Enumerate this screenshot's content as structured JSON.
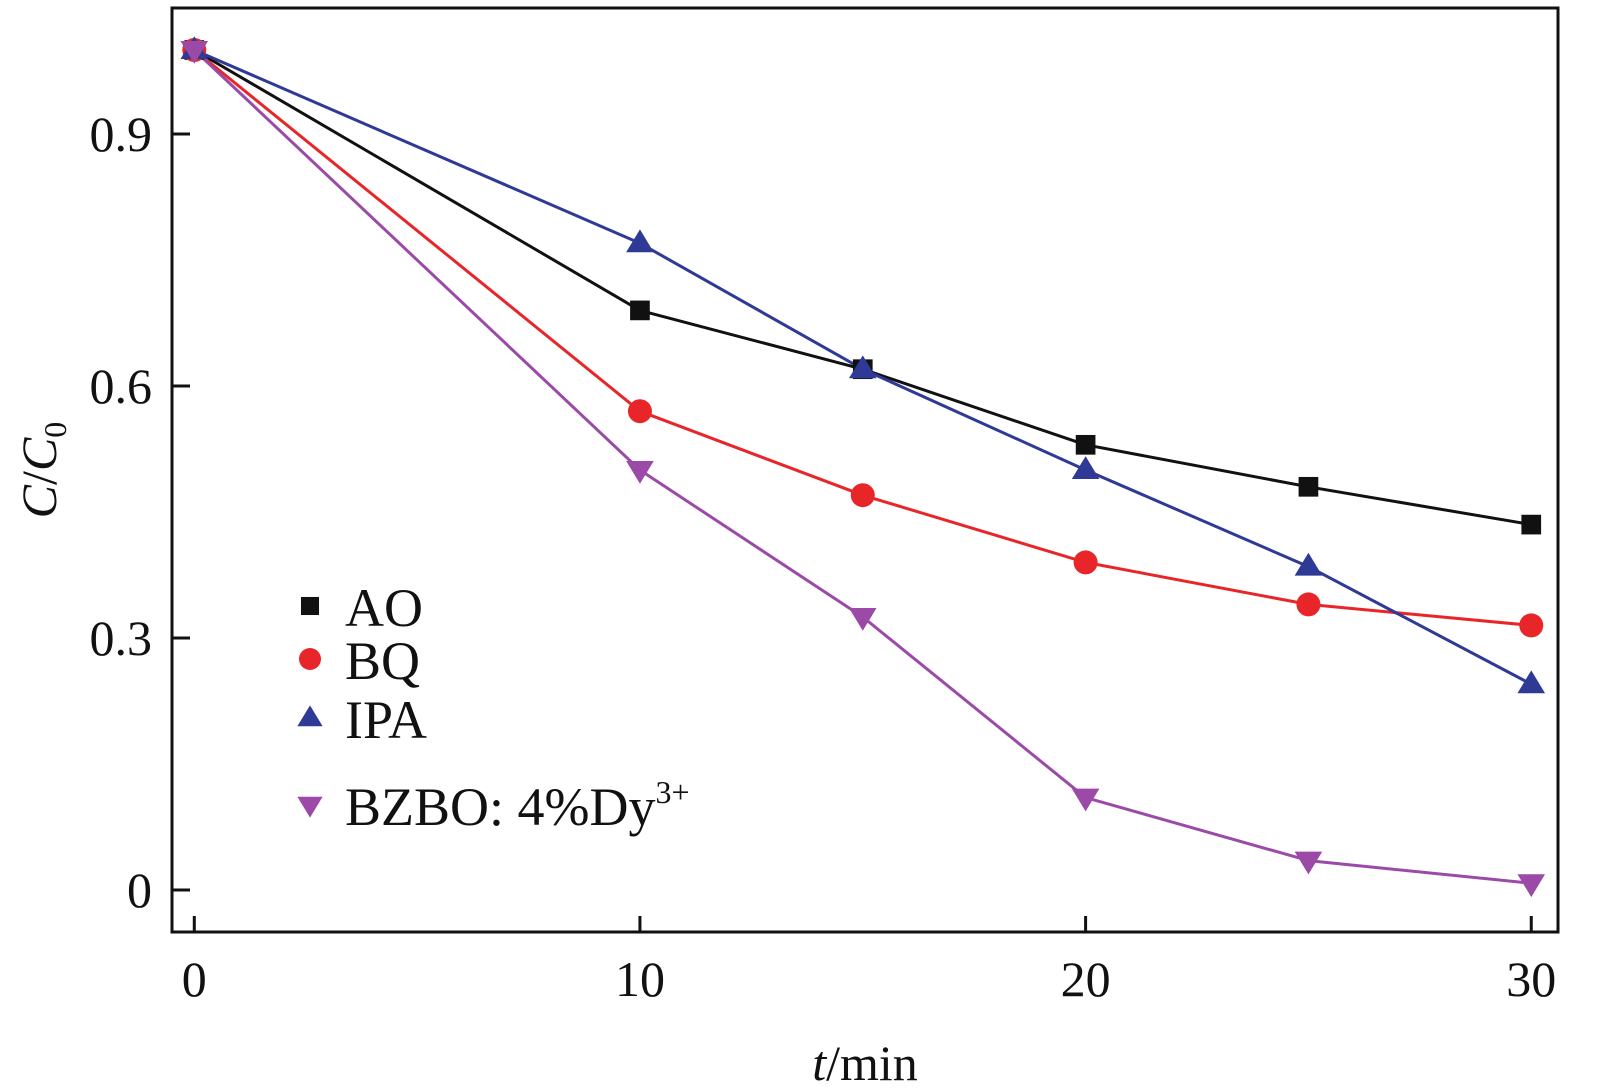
{
  "chart_data": {
    "type": "line",
    "xlabel": {
      "italic": "t",
      "rest": "/min"
    },
    "ylabel": {
      "c": "C",
      "slash": "/",
      "c0": "C",
      "sub": "0"
    },
    "xlim": [
      -0.5,
      30.6
    ],
    "ylim": [
      -0.05,
      1.05
    ],
    "xticks": [
      0,
      10,
      20,
      30
    ],
    "yticks": [
      0,
      0.3,
      0.6,
      0.9
    ],
    "xtick_labels": [
      "0",
      "10",
      "20",
      "30"
    ],
    "ytick_labels": [
      "0",
      "0.3",
      "0.6",
      "0.9"
    ],
    "legend_position": "bottom-left",
    "grid": false,
    "series": [
      {
        "name": "AO",
        "color": "#111111",
        "marker": "square",
        "x": [
          0,
          10,
          15,
          20,
          25,
          30
        ],
        "y": [
          1.0,
          0.69,
          0.62,
          0.53,
          0.48,
          0.435
        ]
      },
      {
        "name": "BQ",
        "color": "#e8262a",
        "marker": "circle",
        "x": [
          0,
          10,
          15,
          20,
          25,
          30
        ],
        "y": [
          1.0,
          0.57,
          0.47,
          0.39,
          0.34,
          0.315
        ]
      },
      {
        "name": "IPA",
        "color": "#2e3a95",
        "marker": "triangle-up",
        "x": [
          0,
          10,
          15,
          20,
          25,
          30
        ],
        "y": [
          1.0,
          0.77,
          0.62,
          0.5,
          0.385,
          0.245
        ]
      },
      {
        "name": "BZBO: 4%Dy",
        "name_sup": "3+",
        "color": "#9b4aa8",
        "marker": "triangle-down",
        "x": [
          0,
          10,
          15,
          20,
          25,
          30
        ],
        "y": [
          1.0,
          0.5,
          0.325,
          0.11,
          0.035,
          0.008
        ]
      }
    ]
  }
}
